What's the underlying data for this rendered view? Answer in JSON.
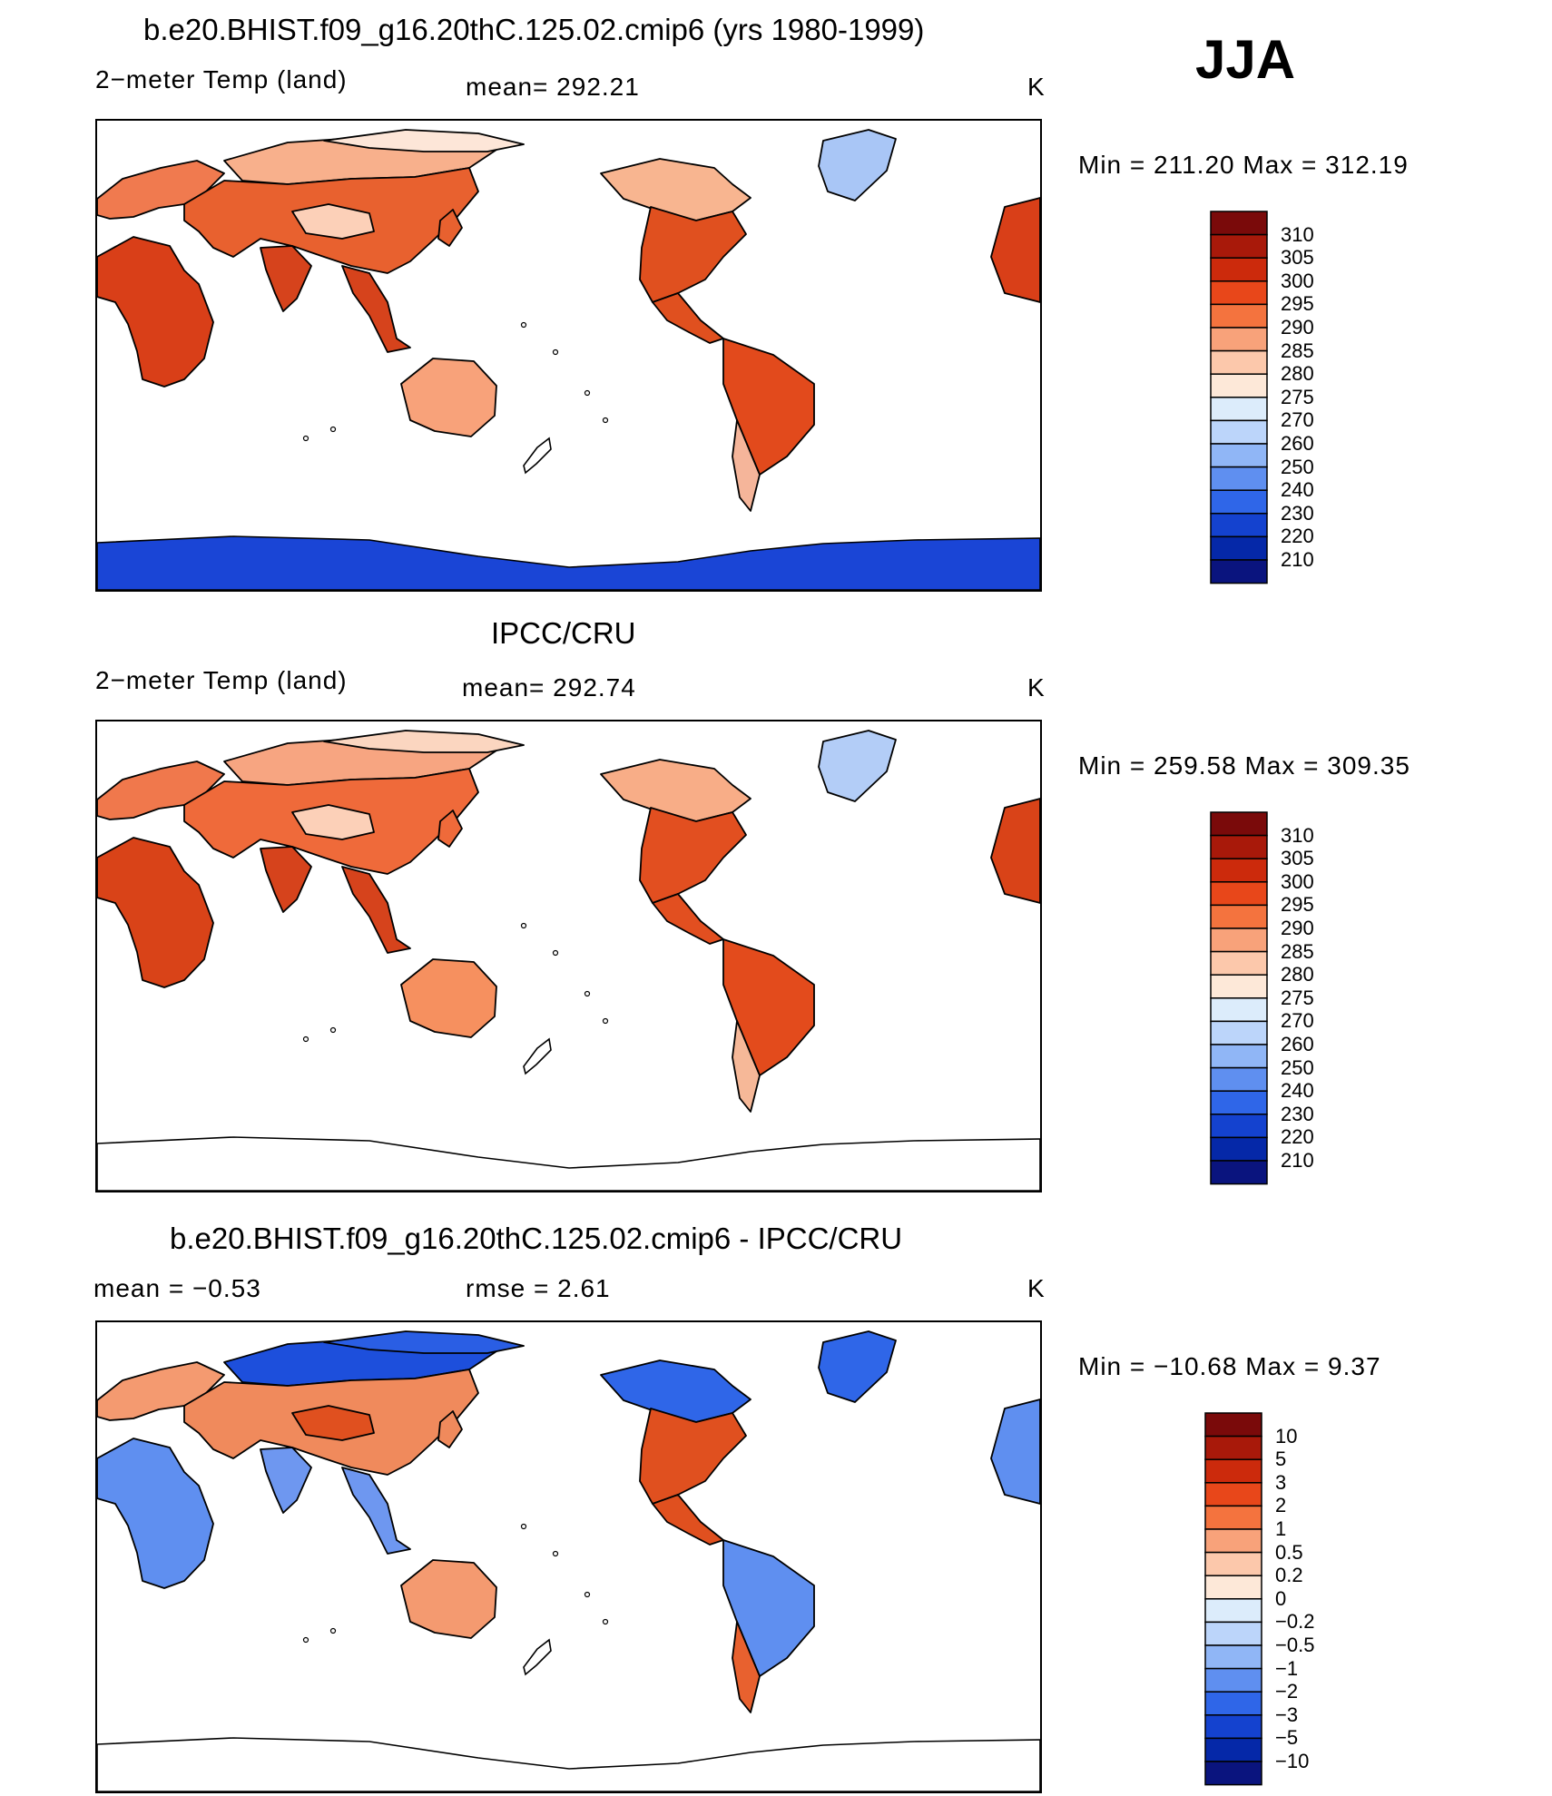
{
  "header": {
    "main_title": "b.e20.BHIST.f09_g16.20thC.125.02.cmip6 (yrs 1980-1999)",
    "season": "JJA"
  },
  "panels": [
    {
      "title": "",
      "left_label": "2−meter Temp (land)",
      "mid_label": "mean= 292.21",
      "unit": "K",
      "min_max": "Min = 211.20 Max = 312.19",
      "antarctica_filled": true
    },
    {
      "title": "IPCC/CRU",
      "left_label": "2−meter Temp (land)",
      "mid_label": "mean= 292.74",
      "unit": "K",
      "min_max": "Min = 259.58 Max = 309.35",
      "antarctica_filled": false
    },
    {
      "title": "b.e20.BHIST.f09_g16.20thC.125.02.cmip6 - IPCC/CRU",
      "left_label": "mean =    −0.53",
      "mid_label": "rmse =     2.61",
      "unit": "K",
      "min_max": "Min = −10.68 Max =     9.37",
      "antarctica_filled": false
    }
  ],
  "colorbars": {
    "temperature": {
      "levels": [
        "310",
        "305",
        "300",
        "295",
        "290",
        "285",
        "280",
        "275",
        "270",
        "260",
        "250",
        "240",
        "230",
        "220",
        "210"
      ],
      "colors": [
        "#7a0a0a",
        "#a8190a",
        "#cc2a0c",
        "#e8471a",
        "#f4733e",
        "#f8a27a",
        "#fcc8ab",
        "#fde8d8",
        "#dcecfb",
        "#bcd5fa",
        "#90b6f6",
        "#5f8ff0",
        "#2f66e8",
        "#1442cf",
        "#0528a8",
        "#0a147e"
      ]
    },
    "difference": {
      "levels": [
        "10",
        "5",
        "3",
        "2",
        "1",
        "0.5",
        "0.2",
        "0",
        "−0.2",
        "−0.5",
        "−1",
        "−2",
        "−3",
        "−5",
        "−10"
      ],
      "colors": [
        "#7a0a0a",
        "#a8190a",
        "#cc2a0c",
        "#e8471a",
        "#f4733e",
        "#f8a27a",
        "#fcc8ab",
        "#fde8d8",
        "#dcecfb",
        "#bcd5fa",
        "#90b6f6",
        "#5f8ff0",
        "#2f66e8",
        "#1442cf",
        "#0528a8",
        "#0a147e"
      ]
    }
  },
  "map_colors": {
    "panel1": {
      "africa": "#d93f18",
      "asia": "#e8612f",
      "europe": "#f07a4f",
      "siberia": "#f8b08c",
      "arctic": "#fde6d8",
      "tibet": "#fcd0b8",
      "india": "#d6431c",
      "australia": "#f8a27a",
      "namerica_n": "#f8b590",
      "namerica_s": "#e0501f",
      "samerica": "#e24a1c",
      "samerica_s": "#f5b59a",
      "greenland": "#a9c6f6",
      "antarctica": "#1a45d6"
    },
    "panel2": {
      "africa": "#d94318",
      "asia": "#ef6a3a",
      "europe": "#f0784c",
      "siberia": "#f7a581",
      "arctic": "#fbd6c0",
      "tibet": "#fcd0b8",
      "india": "#d6431c",
      "australia": "#f6905f",
      "namerica_n": "#f8ad87",
      "namerica_s": "#e24f20",
      "samerica": "#e34b1c",
      "samerica_s": "#f6b898",
      "greenland": "#b3cdf7",
      "antarctica": "#ffffff"
    },
    "panel3": {
      "africa": "#5f8ff0",
      "asia": "#f08a5c",
      "europe": "#f49a70",
      "siberia": "#1d4fdc",
      "arctic": "#2a5ee4",
      "tibet": "#e0501f",
      "india": "#6e97f0",
      "australia": "#f49a70",
      "namerica_n": "#2f66e8",
      "namerica_s": "#e0501f",
      "samerica": "#5f8ff0",
      "samerica_s": "#e8612f",
      "greenland": "#2f66e8",
      "antarctica": "#ffffff"
    }
  }
}
